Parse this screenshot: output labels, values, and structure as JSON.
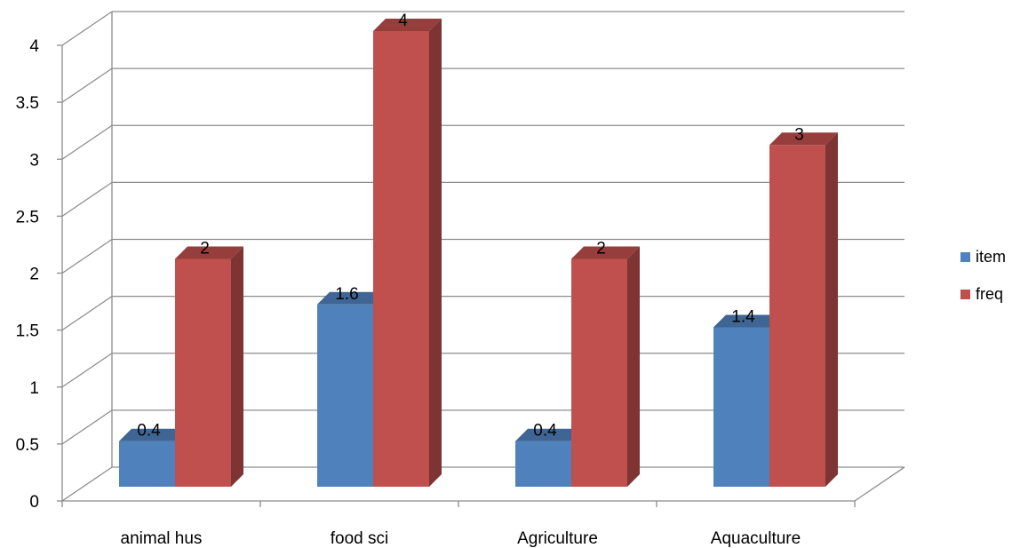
{
  "chart_data": {
    "type": "bar",
    "title": "",
    "xlabel": "",
    "ylabel": "",
    "categories": [
      "animal hus",
      "food sci",
      "Agriculture",
      "Aquaculture"
    ],
    "series": [
      {
        "name": "item",
        "values": [
          0.4,
          1.6,
          0.4,
          1.4
        ]
      },
      {
        "name": "freq",
        "values": [
          2,
          4,
          2,
          3
        ]
      }
    ],
    "ylim": [
      0,
      4.0
    ],
    "yticks": [
      0,
      0.5,
      1,
      1.5,
      2,
      2.5,
      3,
      3.5,
      4
    ],
    "grid": true,
    "legend": "right",
    "data_labels": true,
    "three_d": true,
    "colors": {
      "item": "#4F81BD",
      "freq": "#C0504D"
    }
  },
  "legend": {
    "items": [
      {
        "label": "item",
        "color": "#4F81BD"
      },
      {
        "label": "freq",
        "color": "#C0504D"
      }
    ]
  }
}
